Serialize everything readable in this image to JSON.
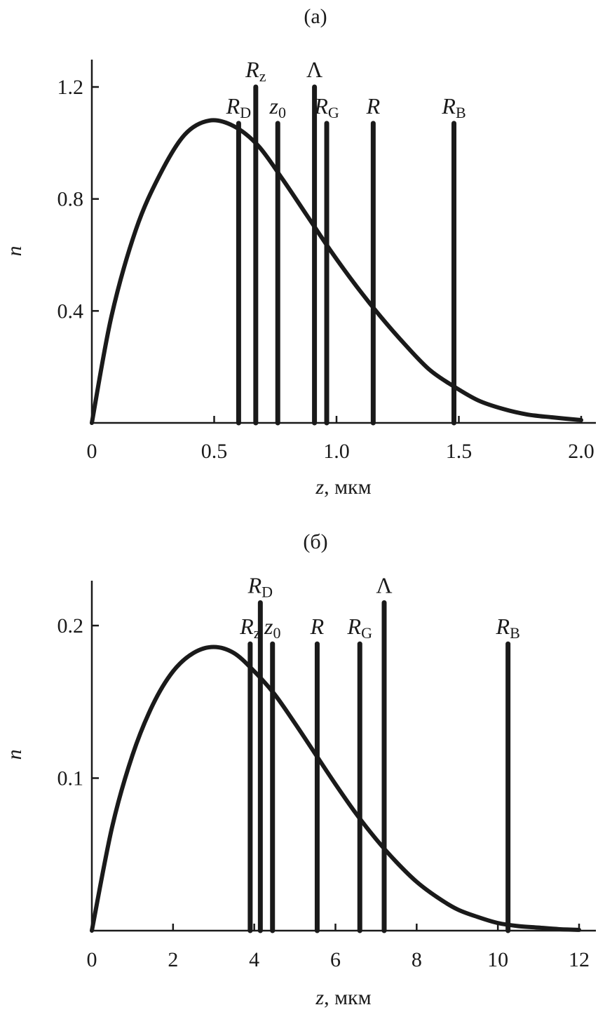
{
  "chart_data": [
    {
      "type": "line",
      "panel_label": "(a)",
      "xlabel_var": "z",
      "xlabel_unit": ", мкм",
      "ylabel": "n",
      "xlim": [
        0,
        2.0
      ],
      "ylim": [
        0,
        1.3
      ],
      "x_ticks": [
        0,
        0.5,
        1.0,
        1.5,
        2.0
      ],
      "x_tick_labels": [
        "0",
        "0.5",
        "1.0",
        "1.5",
        "2.0"
      ],
      "y_ticks": [
        0.4,
        0.8,
        1.2
      ],
      "y_tick_labels": [
        "0.4",
        "0.8",
        "1.2"
      ],
      "series": [
        {
          "x": [
            0,
            0.08,
            0.18,
            0.28,
            0.38,
            0.48,
            0.58,
            0.68,
            0.78,
            0.88,
            0.98,
            1.08,
            1.18,
            1.28,
            1.38,
            1.48,
            1.58,
            1.68,
            1.78,
            1.88,
            2.0
          ],
          "values": [
            0.0,
            0.38,
            0.69,
            0.89,
            1.03,
            1.08,
            1.06,
            0.99,
            0.87,
            0.74,
            0.61,
            0.49,
            0.38,
            0.28,
            0.19,
            0.13,
            0.08,
            0.05,
            0.03,
            0.02,
            0.01
          ]
        }
      ],
      "markers": [
        {
          "base": "R",
          "sub": "D",
          "x": 0.6,
          "top": 1.07
        },
        {
          "base": "R",
          "sub": "z",
          "x": 0.67,
          "top": 1.2
        },
        {
          "base": "z",
          "sub": "0",
          "x": 0.76,
          "top": 1.07
        },
        {
          "base": "Λ",
          "sub": "",
          "x": 0.91,
          "top": 1.2
        },
        {
          "base": "R",
          "sub": "G",
          "x": 0.96,
          "top": 1.07
        },
        {
          "base": "R",
          "sub": "",
          "x": 1.15,
          "top": 1.07
        },
        {
          "base": "R",
          "sub": "B",
          "x": 1.48,
          "top": 1.07
        }
      ]
    },
    {
      "type": "line",
      "panel_label": "(б)",
      "xlabel_var": "z",
      "xlabel_unit": ", мкм",
      "ylabel": "n",
      "xlim": [
        0,
        12
      ],
      "ylim": [
        0,
        0.23
      ],
      "x_ticks": [
        0,
        2,
        4,
        6,
        8,
        10,
        12
      ],
      "x_tick_labels": [
        "0",
        "2",
        "4",
        "6",
        "8",
        "10",
        "12"
      ],
      "y_ticks": [
        0.1,
        0.2
      ],
      "y_tick_labels": [
        "0.1",
        "0.2"
      ],
      "series": [
        {
          "x": [
            0,
            0.5,
            1,
            1.5,
            2,
            2.5,
            3,
            3.5,
            4,
            4.5,
            5,
            5.5,
            6,
            6.5,
            7,
            7.5,
            8,
            8.5,
            9,
            9.5,
            10,
            10.5,
            11,
            11.5,
            12
          ],
          "values": [
            0.0,
            0.068,
            0.115,
            0.148,
            0.17,
            0.182,
            0.186,
            0.182,
            0.17,
            0.155,
            0.136,
            0.116,
            0.096,
            0.077,
            0.06,
            0.045,
            0.032,
            0.022,
            0.014,
            0.009,
            0.005,
            0.003,
            0.002,
            0.001,
            0.0005
          ]
        }
      ],
      "markers": [
        {
          "base": "R",
          "sub": "z",
          "x": 3.9,
          "top": 0.188
        },
        {
          "base": "R",
          "sub": "D",
          "x": 4.15,
          "top": 0.215
        },
        {
          "base": "z",
          "sub": "0",
          "x": 4.45,
          "top": 0.188
        },
        {
          "base": "R",
          "sub": "",
          "x": 5.55,
          "top": 0.188
        },
        {
          "base": "R",
          "sub": "G",
          "x": 6.6,
          "top": 0.188
        },
        {
          "base": "Λ",
          "sub": "",
          "x": 7.2,
          "top": 0.215
        },
        {
          "base": "R",
          "sub": "B",
          "x": 10.25,
          "top": 0.188
        }
      ]
    }
  ]
}
